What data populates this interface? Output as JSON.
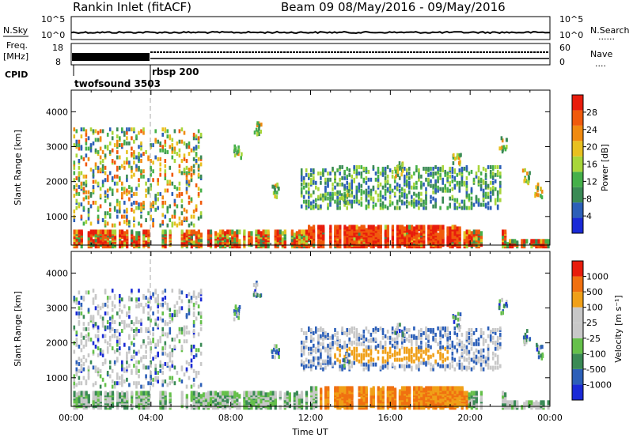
{
  "header": {
    "station": "Rankin Inlet (fitACF)",
    "beam_period": "Beam 09  08/May/2016 - 09/May/2016"
  },
  "strip_panels": {
    "nsky_label": "N.Sky",
    "nsearch_label": "N.Search",
    "noise_left_ticks": [
      "10^5",
      "10^0"
    ],
    "noise_right_ticks": [
      "10^5",
      "10^0"
    ],
    "freq_label_line1": "Freq.",
    "freq_label_line2": "[MHz]",
    "freq_left_ticks": [
      "18",
      "8"
    ],
    "nave_label": "Nave",
    "nave_right_ticks": [
      "60",
      "0"
    ],
    "dots": "......",
    "nave_dots": "....",
    "cpid_label": "CPID",
    "cpid_programs": [
      {
        "name": "twofsound 3503",
        "start_hour": 0
      },
      {
        "name": "rbsp 200",
        "start_hour": 4
      }
    ]
  },
  "chart_data": [
    {
      "type": "heatmap",
      "name": "power",
      "xlabel": "",
      "ylabel": "Slant Range [km]",
      "x_range_hours": [
        0,
        24
      ],
      "ylim": [
        180,
        4620
      ],
      "y_ticks": [
        "1000",
        "2000",
        "3000",
        "4000"
      ],
      "colorbar_label": "Power [dB]",
      "colorbar_ticks": [
        "28",
        "24",
        "20",
        "16",
        "12",
        "8",
        "4"
      ],
      "colors": [
        "#1a2ad6",
        "#2c5fb8",
        "#3a8a55",
        "#45b04a",
        "#a8d63a",
        "#e8c020",
        "#f08a10",
        "#f05a0c",
        "#e81c0c"
      ],
      "description_blocks": [
        {
          "t": [
            0.1,
            3.9
          ],
          "r": [
            200,
            800
          ],
          "level": "high"
        },
        {
          "t": [
            5.0,
            11.8
          ],
          "r": [
            200,
            650
          ],
          "level": "high"
        },
        {
          "t": [
            11.8,
            19.6
          ],
          "r": [
            200,
            800
          ],
          "level": "very-high"
        },
        {
          "t": [
            0.1,
            6.5
          ],
          "r": [
            800,
            3600
          ],
          "level": "mixed"
        },
        {
          "t": [
            11.5,
            21.5
          ],
          "r": [
            1300,
            2500
          ],
          "level": "low"
        }
      ]
    },
    {
      "type": "heatmap",
      "name": "velocity",
      "xlabel": "Time UT",
      "ylabel": "Slant Range [km]",
      "x_range_hours": [
        0,
        24
      ],
      "x_ticks": [
        "00:00",
        "04:00",
        "08:00",
        "12:00",
        "16:00",
        "20:00",
        "00:00"
      ],
      "ylim": [
        180,
        4620
      ],
      "y_ticks": [
        "1000",
        "2000",
        "3000",
        "4000"
      ],
      "colorbar_label": "Velocity [m s⁻¹]",
      "colorbar_ticks": [
        "1000",
        "500",
        "100",
        "25",
        "-25",
        "-100",
        "-500",
        "-1000"
      ],
      "colors": [
        "#1a2ad6",
        "#2c5fb8",
        "#3a8a55",
        "#65c04a",
        "#c8c8c8",
        "#c8c8c8",
        "#f0a018",
        "#f07010",
        "#e81c0c"
      ]
    }
  ]
}
